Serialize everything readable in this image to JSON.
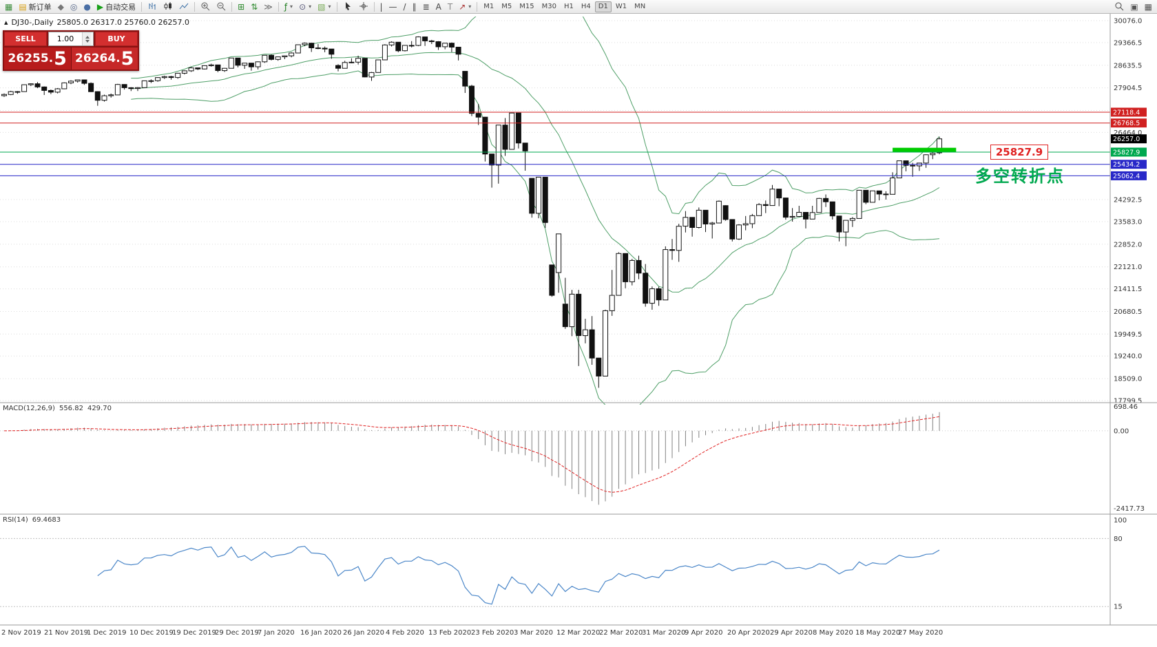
{
  "toolbar": {
    "caret_glyph": "▾",
    "items": [
      {
        "name": "chart-window-icon",
        "icon": "glyph:▦",
        "color": "#3f8f3f"
      },
      {
        "name": "new-order-button",
        "icon": "glyph:▤",
        "color": "#d8a018",
        "label": "新订单"
      },
      {
        "name": "profiles-icon",
        "icon": "glyph:◆",
        "color": "#777777"
      },
      {
        "name": "data-window-icon",
        "icon": "glyph:◎",
        "color": "#556688"
      },
      {
        "name": "navigator-icon",
        "icon": "glyph:●",
        "color": "#4a6fa5"
      },
      {
        "name": "auto-trading-button",
        "icon": "glyph:▶",
        "color": "#18a018",
        "label": "自动交易"
      },
      {
        "type": "sep"
      },
      {
        "name": "chart-bars-icon",
        "icon": "svg:bars"
      },
      {
        "name": "chart-candles-icon",
        "icon": "svg:candles"
      },
      {
        "name": "chart-line-icon",
        "icon": "svg:line"
      },
      {
        "type": "sep"
      },
      {
        "name": "zoom-in-icon",
        "icon": "svg:zoomin"
      },
      {
        "name": "zoom-out-icon",
        "icon": "svg:zoomout"
      },
      {
        "type": "sep"
      },
      {
        "name": "tile-windows-icon",
        "icon": "glyph:⊞",
        "color": "#2d8a2d"
      },
      {
        "name": "auto-arrange-icon",
        "icon": "glyph:⇅",
        "color": "#2d8a2d"
      },
      {
        "name": "chart-shift-icon",
        "icon": "glyph:≫",
        "color": "#666666"
      },
      {
        "type": "sep"
      },
      {
        "name": "indicators-button",
        "icon": "glyph:ƒ",
        "color": "#1a7a1a",
        "caret": true
      },
      {
        "name": "periods-button",
        "icon": "glyph:⊙",
        "color": "#555577",
        "caret": true
      },
      {
        "name": "templates-button",
        "icon": "glyph:▧",
        "color": "#77aa55",
        "caret": true
      },
      {
        "type": "sep"
      },
      {
        "name": "cursor-icon",
        "icon": "svg:cursor"
      },
      {
        "name": "crosshair-icon",
        "icon": "svg:crosshair"
      },
      {
        "type": "sep"
      },
      {
        "name": "vertical-line-icon",
        "icon": "glyph:|",
        "color": "#444444"
      },
      {
        "name": "horizontal-line-icon",
        "icon": "glyph:—",
        "color": "#444444"
      },
      {
        "name": "trendline-icon",
        "icon": "glyph:/",
        "color": "#444444"
      },
      {
        "name": "channel-icon",
        "icon": "glyph:∥",
        "color": "#444444"
      },
      {
        "name": "fibonacci-icon",
        "icon": "glyph:≣",
        "color": "#444444"
      },
      {
        "name": "text-icon",
        "icon": "glyph:A",
        "color": "#444444"
      },
      {
        "name": "label-icon",
        "icon": "glyph:T",
        "color": "#888888"
      },
      {
        "name": "arrows-button",
        "icon": "glyph:↗",
        "color": "#aa3333",
        "caret": true
      },
      {
        "type": "sep"
      },
      {
        "type": "tf",
        "name": "timeframe-m1",
        "label": "M1"
      },
      {
        "type": "tf",
        "name": "timeframe-m5",
        "label": "M5"
      },
      {
        "type": "tf",
        "name": "timeframe-m15",
        "label": "M15"
      },
      {
        "type": "tf",
        "name": "timeframe-m30",
        "label": "M30"
      },
      {
        "type": "tf",
        "name": "timeframe-h1",
        "label": "H1"
      },
      {
        "type": "tf",
        "name": "timeframe-h4",
        "label": "H4"
      },
      {
        "type": "tf",
        "name": "timeframe-d1",
        "label": "D1",
        "active": true
      },
      {
        "type": "tf",
        "name": "timeframe-w1",
        "label": "W1"
      },
      {
        "type": "tf",
        "name": "timeframe-mn",
        "label": "MN"
      },
      {
        "type": "spacer"
      },
      {
        "name": "search-icon",
        "icon": "svg:search"
      },
      {
        "name": "new-chart-icon",
        "icon": "glyph:▣",
        "color": "#555555"
      },
      {
        "name": "window-list-icon",
        "icon": "glyph:▦",
        "color": "#555555"
      }
    ]
  },
  "chart_header": {
    "marker": "▴",
    "symbol": "DJ30-,Daily",
    "ohlc": "25805.0 26317.0 25760.0 26257.0"
  },
  "trade_panel": {
    "sell_label": "SELL",
    "buy_label": "BUY",
    "volume": "1.00",
    "sell_price_main": "26255.",
    "sell_price_big": "5",
    "buy_price_main": "26264.",
    "buy_price_big": "5"
  },
  "annotations": {
    "level_box_text": "25827.9",
    "turning_point_text": "多空转折点"
  },
  "chart_data": {
    "type": "candlestick",
    "symbol": "DJ30-",
    "timeframe": "Daily",
    "price_axis": {
      "ylim": [
        17799.5,
        30076.0
      ],
      "gridlines": [
        30076.0,
        29366.5,
        28635.5,
        27904.5,
        27173.5,
        26464.0,
        24292.5,
        23583.0,
        22852.0,
        22121.0,
        21411.5,
        20680.5,
        19949.5,
        19240.0,
        18509.0,
        17799.5
      ]
    },
    "levels": [
      {
        "label": "27118.4",
        "price": 27118.4,
        "color": "#d02020"
      },
      {
        "label": "26768.5",
        "price": 26768.5,
        "color": "#d02020"
      },
      {
        "label": "25827.9",
        "price": 25827.9,
        "color": "#00a84f"
      },
      {
        "label": "25434.2",
        "price": 25434.2,
        "color": "#2828c8"
      },
      {
        "label": "25062.4",
        "price": 25062.4,
        "color": "#2828c8"
      }
    ],
    "current_price": {
      "label": "26257.0",
      "price": 26257.0,
      "color": "#000000"
    },
    "highlight_rect": {
      "from_index": 133,
      "to_index": 142.5,
      "price_top": 25968,
      "price_bottom": 25832,
      "color": "#00cc00"
    },
    "bollinger": {
      "period": 20,
      "deviation": 2,
      "color": "#4d9e66"
    },
    "macd": {
      "label": "MACD(12,26,9)",
      "value_main": "556.82",
      "value_signal": "429.70",
      "axis_labels": [
        "698.46",
        "0.00",
        "-2417.73"
      ],
      "fast": 12,
      "slow": 26,
      "signal": 9,
      "histogram_color": "#808080",
      "signal_color": "#e02020"
    },
    "rsi": {
      "label": "RSI(14)",
      "value": "69.4683",
      "period": 14,
      "axis_labels": [
        100,
        80,
        15
      ],
      "levels": [
        80,
        15
      ],
      "color": "#4a86c8"
    },
    "x_labels": [
      "2 Nov 2019",
      "21 Nov 2019",
      "1 Dec 2019",
      "10 Dec 2019",
      "19 Dec 2019",
      "29 Dec 2019",
      "7 Jan 2020",
      "16 Jan 2020",
      "26 Jan 2020",
      "4 Feb 2020",
      "13 Feb 2020",
      "23 Feb 2020",
      "3 Mar 2020",
      "12 Mar 2020",
      "22 Mar 2020",
      "31 Mar 2020",
      "9 Apr 2020",
      "20 Apr 2020",
      "29 Apr 2020",
      "8 May 2020",
      "18 May 2020",
      "27 May 2020"
    ],
    "candles": [
      [
        27650,
        27725,
        27615,
        27691
      ],
      [
        27691,
        27810,
        27670,
        27784
      ],
      [
        27784,
        27800,
        27712,
        27782
      ],
      [
        27782,
        28014,
        27782,
        28005
      ],
      [
        28005,
        28050,
        27960,
        28036
      ],
      [
        28036,
        28090,
        27894,
        27934
      ],
      [
        27934,
        27950,
        27675,
        27821
      ],
      [
        27821,
        27850,
        27700,
        27766
      ],
      [
        27766,
        27898,
        27725,
        27875
      ],
      [
        27875,
        28080,
        27860,
        28066
      ],
      [
        28066,
        28150,
        28025,
        28122
      ],
      [
        28122,
        28175,
        28075,
        28164
      ],
      [
        28164,
        28170,
        28000,
        28051
      ],
      [
        28051,
        28080,
        27770,
        27783
      ],
      [
        27783,
        27790,
        27325,
        27503
      ],
      [
        27503,
        27685,
        27460,
        27650
      ],
      [
        27650,
        27720,
        27590,
        27678
      ],
      [
        27678,
        28035,
        27678,
        28015
      ],
      [
        28015,
        28020,
        27850,
        27910
      ],
      [
        27910,
        27925,
        27800,
        27882
      ],
      [
        27882,
        27930,
        27800,
        27911
      ],
      [
        27911,
        28140,
        27911,
        28132
      ],
      [
        28132,
        28180,
        28060,
        28135
      ],
      [
        28135,
        28250,
        28100,
        28236
      ],
      [
        28236,
        28300,
        28190,
        28267
      ],
      [
        28267,
        28290,
        28170,
        28239
      ],
      [
        28239,
        28390,
        28200,
        28377
      ],
      [
        28377,
        28470,
        28340,
        28455
      ],
      [
        28455,
        28580,
        28420,
        28551
      ],
      [
        28551,
        28560,
        28480,
        28515
      ],
      [
        28515,
        28625,
        28500,
        28621
      ],
      [
        28621,
        28685,
        28590,
        28645
      ],
      [
        28645,
        28650,
        28410,
        28462
      ],
      [
        28462,
        28547,
        28420,
        28538
      ],
      [
        28538,
        28872,
        28538,
        28869
      ],
      [
        28869,
        28870,
        28565,
        28635
      ],
      [
        28635,
        28710,
        28520,
        28704
      ],
      [
        28704,
        28710,
        28460,
        28584
      ],
      [
        28584,
        28760,
        28500,
        28745
      ],
      [
        28745,
        28960,
        28710,
        28957
      ],
      [
        28957,
        28985,
        28790,
        28824
      ],
      [
        28824,
        28910,
        28780,
        28907
      ],
      [
        28907,
        28950,
        28830,
        28939
      ],
      [
        28939,
        29055,
        28890,
        29030
      ],
      [
        29030,
        29300,
        29030,
        29297
      ],
      [
        29297,
        29373,
        29250,
        29348
      ],
      [
        29348,
        29350,
        29065,
        29196
      ],
      [
        29196,
        29320,
        29152,
        29186
      ],
      [
        29186,
        29240,
        29055,
        29160
      ],
      [
        29160,
        29165,
        28843,
        28990
      ],
      [
        28628,
        28670,
        28440,
        28536
      ],
      [
        28536,
        28780,
        28530,
        28723
      ],
      [
        28723,
        28860,
        28700,
        28734
      ],
      [
        28734,
        28945,
        28660,
        28859
      ],
      [
        28859,
        28860,
        28245,
        28256
      ],
      [
        28256,
        28420,
        28130,
        28400
      ],
      [
        28400,
        28815,
        28400,
        28808
      ],
      [
        28808,
        29315,
        28808,
        29291
      ],
      [
        29291,
        29409,
        29240,
        29380
      ],
      [
        29380,
        29385,
        29056,
        29103
      ],
      [
        29103,
        29280,
        29080,
        29277
      ],
      [
        29277,
        29415,
        29210,
        29276
      ],
      [
        29276,
        29568,
        29250,
        29551
      ],
      [
        29551,
        29555,
        29260,
        29423
      ],
      [
        29423,
        29455,
        29320,
        29398
      ],
      [
        29398,
        29415,
        29130,
        29232
      ],
      [
        29232,
        29355,
        29150,
        29348
      ],
      [
        29348,
        29370,
        29060,
        29220
      ],
      [
        29220,
        29225,
        28790,
        28992
      ],
      [
        28440,
        28440,
        27740,
        27961
      ],
      [
        27961,
        28000,
        26990,
        27081
      ],
      [
        27081,
        27380,
        26705,
        26958
      ],
      [
        26958,
        26965,
        25525,
        25767
      ],
      [
        25767,
        25770,
        24681,
        25409
      ],
      [
        25409,
        26706,
        24810,
        26703
      ],
      [
        26703,
        26930,
        25705,
        25917
      ],
      [
        25917,
        27100,
        25915,
        27091
      ],
      [
        27091,
        27095,
        25945,
        26121
      ],
      [
        26121,
        26125,
        25227,
        25865
      ],
      [
        24980,
        24985,
        23710,
        23851
      ],
      [
        23851,
        25025,
        23690,
        25018
      ],
      [
        25018,
        25020,
        23378,
        23553
      ],
      [
        22184,
        22185,
        21154,
        21201
      ],
      [
        21935,
        23189,
        21285,
        23186
      ],
      [
        20917,
        21768,
        20116,
        20188
      ],
      [
        20188,
        21379,
        19882,
        21237
      ],
      [
        21237,
        21379,
        18917,
        19899
      ],
      [
        19899,
        20442,
        19649,
        20087
      ],
      [
        20087,
        20531,
        18957,
        19174
      ],
      [
        19174,
        19180,
        18214,
        18592
      ],
      [
        18592,
        20738,
        18592,
        20705
      ],
      [
        20705,
        22020,
        20538,
        21200
      ],
      [
        21200,
        22595,
        21200,
        22552
      ],
      [
        22552,
        22555,
        21428,
        21637
      ],
      [
        21637,
        22378,
        21522,
        22327
      ],
      [
        22327,
        22482,
        21722,
        21917
      ],
      [
        21917,
        22212,
        20834,
        20944
      ],
      [
        20944,
        21487,
        20735,
        21413
      ],
      [
        21413,
        21477,
        20863,
        21053
      ],
      [
        21053,
        22783,
        21053,
        22680
      ],
      [
        22680,
        23021,
        22348,
        22654
      ],
      [
        22654,
        23513,
        22282,
        23434
      ],
      [
        23434,
        23923,
        23233,
        23719
      ],
      [
        23719,
        23725,
        23096,
        23391
      ],
      [
        23391,
        24040,
        23361,
        23950
      ],
      [
        23950,
        23955,
        23247,
        23504
      ],
      [
        23504,
        23575,
        23038,
        23538
      ],
      [
        23538,
        24264,
        23538,
        24242
      ],
      [
        24100,
        24110,
        23610,
        23650
      ],
      [
        23650,
        23655,
        22942,
        23019
      ],
      [
        23019,
        23502,
        22990,
        23476
      ],
      [
        23476,
        23765,
        23301,
        23515
      ],
      [
        23515,
        23831,
        23370,
        23775
      ],
      [
        23775,
        24180,
        23775,
        24134
      ],
      [
        24134,
        24264,
        23857,
        24102
      ],
      [
        24102,
        24765,
        24102,
        24634
      ],
      [
        24634,
        24640,
        24080,
        24346
      ],
      [
        24346,
        24350,
        23645,
        23724
      ],
      [
        23724,
        24020,
        23581,
        23750
      ],
      [
        23750,
        24094,
        23730,
        23883
      ],
      [
        23883,
        23890,
        23361,
        23665
      ],
      [
        23665,
        24094,
        23665,
        23876
      ],
      [
        23876,
        24349,
        23876,
        24331
      ],
      [
        24331,
        24460,
        24055,
        24222
      ],
      [
        24222,
        24225,
        23650,
        23765
      ],
      [
        23765,
        23770,
        22944,
        23248
      ],
      [
        23248,
        23633,
        22789,
        23625
      ],
      [
        23625,
        23730,
        23410,
        23685
      ],
      [
        23685,
        24602,
        23685,
        24597
      ],
      [
        24597,
        24600,
        24145,
        24207
      ],
      [
        24207,
        24577,
        24207,
        24576
      ],
      [
        24576,
        24580,
        24270,
        24474
      ],
      [
        24474,
        24566,
        24294,
        24465
      ],
      [
        24465,
        25176,
        24465,
        24995
      ],
      [
        24995,
        25549,
        24995,
        25548
      ],
      [
        25548,
        25550,
        25208,
        25401
      ],
      [
        25401,
        25483,
        25031,
        25383
      ],
      [
        25383,
        25480,
        25222,
        25475
      ],
      [
        25475,
        25758,
        25320,
        25743
      ],
      [
        25743,
        25905,
        25601,
        25790
      ],
      [
        25805,
        26317,
        25760,
        26257
      ]
    ]
  }
}
